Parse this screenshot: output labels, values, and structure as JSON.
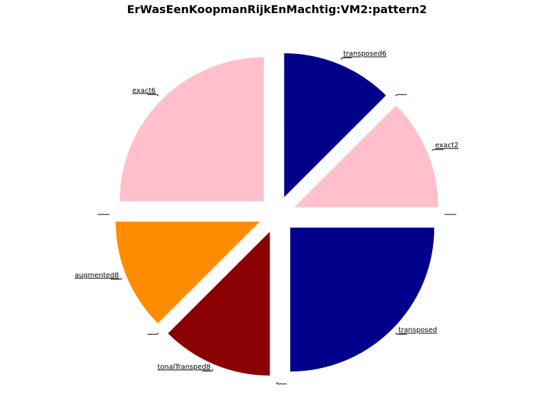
{
  "chart_data": {
    "type": "pie",
    "title": "ErWasEenKoopmanRijkEnMachtig:VM2:pattern2",
    "slices": [
      {
        "label": "transposed6",
        "value": 1,
        "color": "#00008b"
      },
      {
        "label": "",
        "value": 0,
        "color": "#00008b"
      },
      {
        "label": "exact2",
        "value": 1,
        "color": "#ffc0cb"
      },
      {
        "label": "",
        "value": 0,
        "color": "#ffc0cb"
      },
      {
        "label": "transposed",
        "value": 2,
        "color": "#00008b"
      },
      {
        "label": "",
        "value": 0,
        "color": "#00008b"
      },
      {
        "label": "tonalTransped8",
        "value": 1,
        "color": "#8b0000"
      },
      {
        "label": "",
        "value": 0,
        "color": "#8b0000"
      },
      {
        "label": "augmented8",
        "value": 1,
        "color": "#ff8c00"
      },
      {
        "label": "",
        "value": 0,
        "color": "#ff8c00"
      },
      {
        "label": "exact6",
        "value": 2,
        "color": "#ffc0cb"
      }
    ]
  }
}
